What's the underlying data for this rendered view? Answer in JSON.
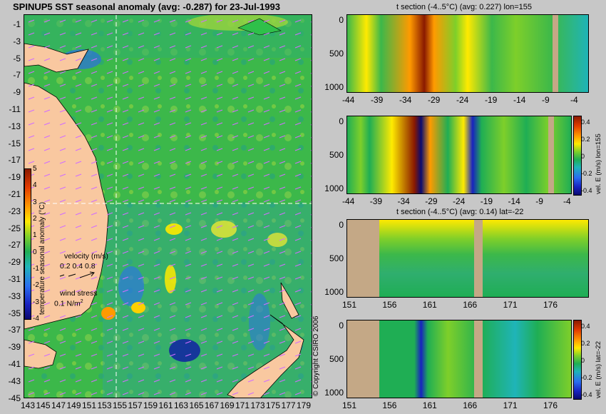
{
  "map": {
    "title": "SPINUP5 SST seasonal anomaly (avg: -0.287) for 23-Jul-1993",
    "lat_ticks": [
      "-1",
      "-3",
      "-5",
      "-7",
      "-9",
      "-11",
      "-13",
      "-15",
      "-17",
      "-19",
      "-21",
      "-23",
      "-25",
      "-27",
      "-29",
      "-31",
      "-33",
      "-35",
      "-37",
      "-39",
      "-41",
      "-43",
      "-45"
    ],
    "lon_ticks": [
      "143",
      "145",
      "147",
      "149",
      "151",
      "153",
      "155",
      "157",
      "159",
      "161",
      "163",
      "165",
      "167",
      "169",
      "171",
      "173",
      "175",
      "177",
      "179"
    ],
    "colorbar": {
      "label": "temperature seasonal anomaly (°C)",
      "ticks": [
        "5",
        "4",
        "3",
        "2",
        "1",
        "0",
        "-1",
        "-2",
        "-3",
        "-4"
      ]
    },
    "legend": {
      "velocity_label": "velocity (m/s)",
      "velocity_values": "0.2 0.4 0.8",
      "wind_label": "wind stress",
      "wind_value": "0.1 N/m",
      "wind_superscript": "2"
    },
    "crosshair": {
      "lon": 155,
      "lat": -22
    }
  },
  "panels": [
    {
      "title": "t section (-4..5°C) (avg: 0.227) lon=155",
      "x_ticks": [
        "-44",
        "-39",
        "-34",
        "-29",
        "-24",
        "-19",
        "-14",
        "-9",
        "-4"
      ],
      "y_ticks": [
        "0",
        "500",
        "1000"
      ],
      "colorbar_label": "",
      "colorbar_ticks": []
    },
    {
      "title": "",
      "x_ticks": [
        "-44",
        "-39",
        "-34",
        "-29",
        "-24",
        "-19",
        "-14",
        "-9",
        "-4"
      ],
      "y_ticks": [
        "0",
        "500",
        "1000"
      ],
      "colorbar_label": "vel. E (m/s) lon=155",
      "colorbar_ticks": [
        "0.4",
        "0.2",
        "0",
        "-0.2",
        "-0.4"
      ]
    },
    {
      "title": "t section (-4..5°C) (avg: 0.14) lat=-22",
      "x_ticks": [
        "151",
        "156",
        "161",
        "166",
        "171",
        "176"
      ],
      "y_ticks": [
        "0",
        "500",
        "1000"
      ],
      "colorbar_label": "",
      "colorbar_ticks": []
    },
    {
      "title": "",
      "x_ticks": [
        "151",
        "156",
        "161",
        "166",
        "171",
        "176"
      ],
      "y_ticks": [
        "0",
        "500",
        "1000"
      ],
      "colorbar_label": "vel. E (m/s) lat=-22",
      "colorbar_ticks": [
        "0.4",
        "0.2",
        "0",
        "-0.2",
        "-0.4"
      ]
    }
  ],
  "copyright": "© Copyright CSIRO 2006",
  "colors": {
    "background": "#c7c7c7",
    "land": "#f9c8a0",
    "section_land": "#c4a886",
    "ocean_base": "#3cb84a"
  }
}
